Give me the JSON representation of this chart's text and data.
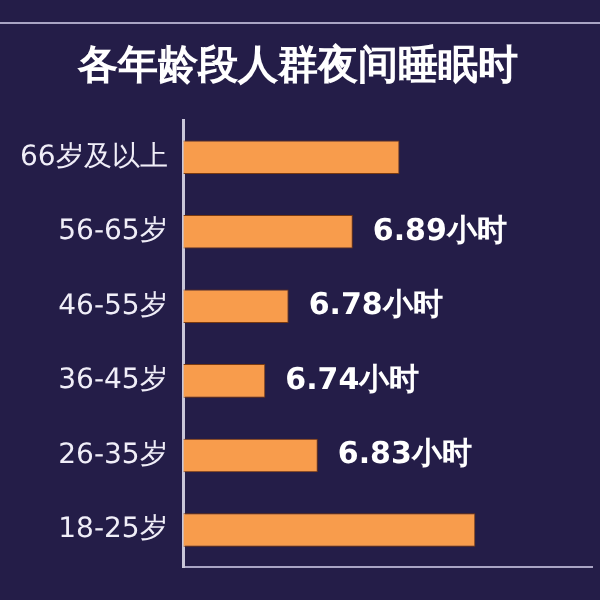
{
  "chart_data": {
    "type": "bar",
    "orientation": "horizontal",
    "title": "各年龄段人群夜间睡眠时",
    "categories": [
      "66岁及以上",
      "56-65岁",
      "46-55岁",
      "36-45岁",
      "26-35岁",
      "18-25岁"
    ],
    "values": [
      6.97,
      6.89,
      6.78,
      6.74,
      6.83,
      7.1
    ],
    "value_labels": [
      null,
      "6.89小时",
      "6.78小时",
      "6.74小时",
      "6.83小时",
      null
    ],
    "color": "#f89c4c",
    "xlim": [
      6.6,
      7.3
    ],
    "tick_labels": "y",
    "grid": false
  }
}
